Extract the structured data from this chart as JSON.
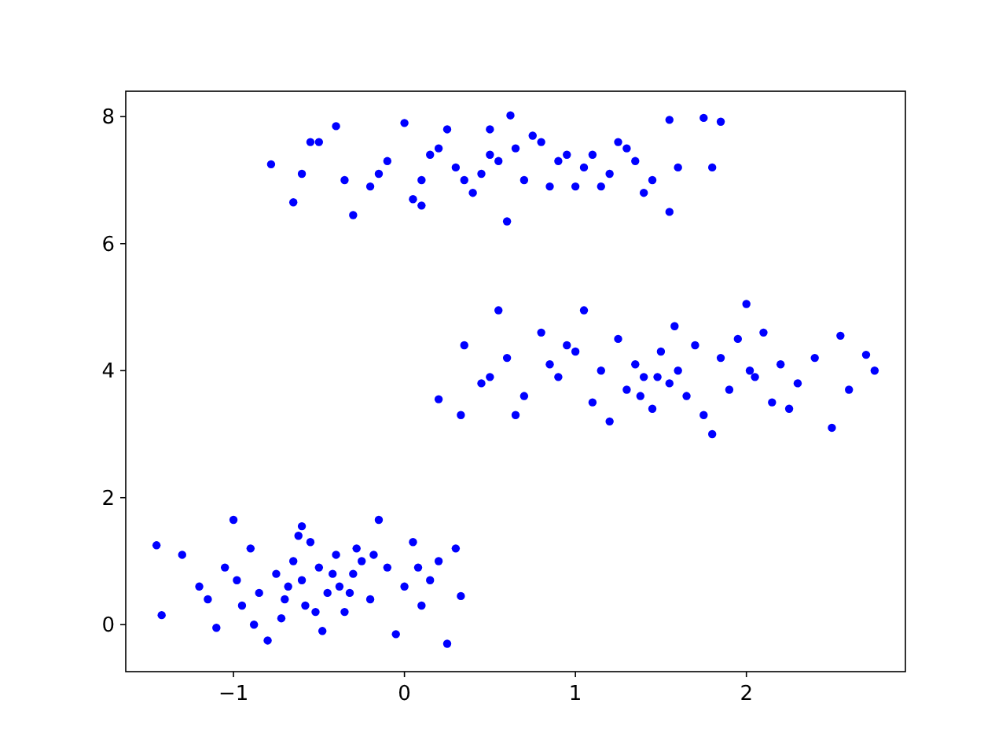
{
  "chart_data": {
    "type": "scatter",
    "marker": "circle",
    "grid": false,
    "xlim": [
      -1.63,
      2.93
    ],
    "ylim": [
      -0.74,
      8.4
    ],
    "xticks": [
      {
        "value": -1,
        "label": "−1"
      },
      0,
      1,
      2
    ],
    "yticks": [
      0,
      2,
      4,
      6,
      8
    ],
    "series": [
      {
        "color": "#0000ff",
        "x": [
          -1.42,
          -1.45,
          -1.0,
          -0.6,
          -0.15,
          0.33,
          0.25,
          -0.8,
          -0.05,
          0.3,
          -1.3,
          -1.1,
          -1.2,
          -1.05,
          -0.95,
          -0.9,
          -0.85,
          -0.75,
          -0.7,
          -0.65,
          -0.6,
          -0.55,
          -0.5,
          -0.45,
          -0.4,
          -0.35,
          -0.3,
          -0.25,
          -0.2,
          -0.1,
          0.0,
          0.05,
          0.1,
          0.15,
          0.2,
          -0.72,
          -0.62,
          -0.48,
          -0.38,
          -0.28,
          -0.88,
          -0.98,
          -1.15,
          -0.52,
          -0.42,
          -0.18,
          0.08,
          -0.68,
          -0.58,
          -0.32,
          0.2,
          0.35,
          0.55,
          1.05,
          2.0,
          2.75,
          2.7,
          2.5,
          1.8,
          0.33,
          1.2,
          2.55,
          0.45,
          0.6,
          0.7,
          0.8,
          0.9,
          1.0,
          1.1,
          1.15,
          1.25,
          1.3,
          1.35,
          1.4,
          1.45,
          1.5,
          1.55,
          1.6,
          1.65,
          1.7,
          1.75,
          1.85,
          1.9,
          1.95,
          2.05,
          2.1,
          2.15,
          2.2,
          2.3,
          2.4,
          0.5,
          0.65,
          0.85,
          0.95,
          1.38,
          1.48,
          1.58,
          2.02,
          2.25,
          2.6,
          0.62,
          1.75,
          1.85,
          -0.78,
          -0.65,
          0.6,
          -0.3,
          1.55,
          1.55,
          0.0,
          -0.4,
          1.8,
          -0.6,
          -0.5,
          -0.2,
          -0.1,
          0.1,
          0.2,
          0.3,
          0.4,
          0.5,
          0.7,
          0.8,
          0.9,
          1.0,
          1.1,
          1.2,
          1.3,
          1.4,
          1.6,
          -0.55,
          -0.35,
          0.05,
          0.15,
          0.25,
          0.45,
          0.55,
          0.75,
          0.85,
          1.05,
          1.25,
          1.45,
          0.35,
          0.65,
          0.95,
          -0.15,
          0.1,
          1.15,
          1.35,
          0.5
        ],
        "values": [
          0.15,
          1.25,
          1.65,
          1.55,
          1.65,
          0.45,
          -0.3,
          -0.25,
          -0.15,
          1.2,
          1.1,
          -0.05,
          0.6,
          0.9,
          0.3,
          1.2,
          0.5,
          0.8,
          0.4,
          1.0,
          0.7,
          1.3,
          0.9,
          0.5,
          1.1,
          0.2,
          0.8,
          1.0,
          0.4,
          0.9,
          0.6,
          1.3,
          0.3,
          0.7,
          1.0,
          0.1,
          1.4,
          -0.1,
          0.6,
          1.2,
          0.0,
          0.7,
          0.4,
          0.2,
          0.8,
          1.1,
          0.9,
          0.6,
          0.3,
          0.5,
          3.55,
          4.4,
          4.95,
          4.95,
          5.05,
          4.0,
          4.25,
          3.1,
          3.0,
          3.3,
          3.2,
          4.55,
          3.8,
          4.2,
          3.6,
          4.6,
          3.9,
          4.3,
          3.5,
          4.0,
          4.5,
          3.7,
          4.1,
          3.9,
          3.4,
          4.3,
          3.8,
          4.0,
          3.6,
          4.4,
          3.3,
          4.2,
          3.7,
          4.5,
          3.9,
          4.6,
          3.5,
          4.1,
          3.8,
          4.2,
          3.9,
          3.3,
          4.1,
          4.4,
          3.6,
          3.9,
          4.7,
          4.0,
          3.4,
          3.7,
          8.02,
          7.98,
          7.92,
          7.25,
          6.65,
          6.35,
          6.45,
          6.5,
          7.95,
          7.9,
          7.85,
          7.2,
          7.1,
          7.6,
          6.9,
          7.3,
          7.0,
          7.5,
          7.2,
          6.8,
          7.4,
          7.0,
          7.6,
          7.3,
          6.9,
          7.4,
          7.1,
          7.5,
          6.8,
          7.2,
          7.6,
          7.0,
          6.7,
          7.4,
          7.8,
          7.1,
          7.3,
          7.7,
          6.9,
          7.2,
          7.6,
          7.0,
          7.0,
          7.5,
          7.4,
          7.1,
          6.6,
          6.9,
          7.3,
          7.8
        ]
      }
    ]
  }
}
